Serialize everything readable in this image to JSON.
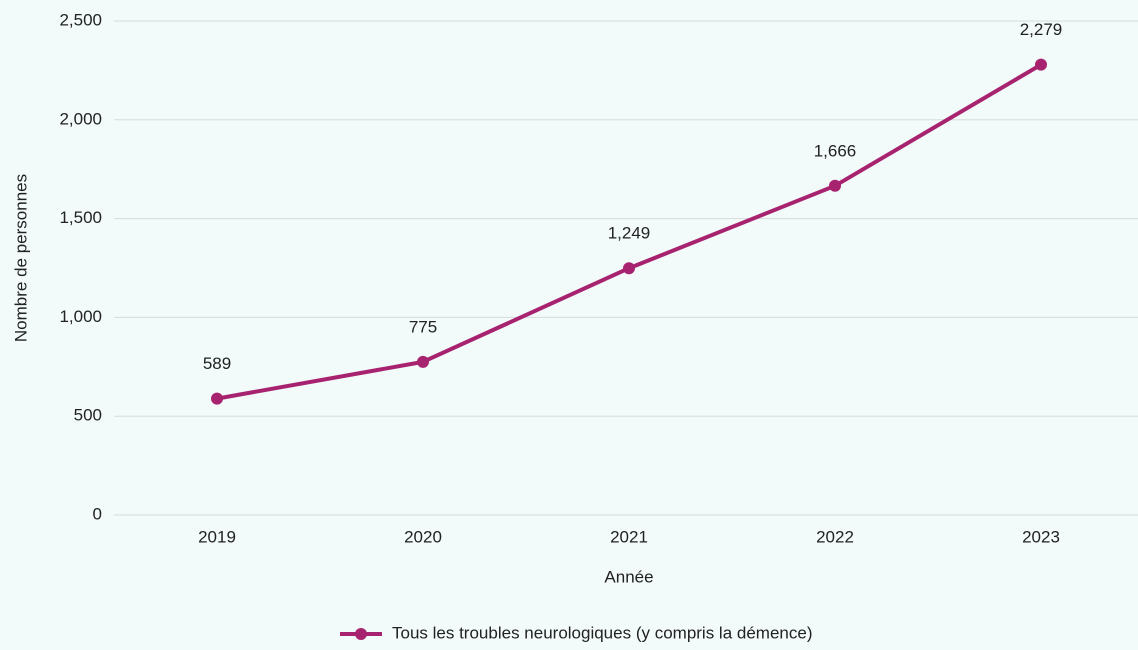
{
  "chart_data": {
    "type": "line",
    "x_label": "Année",
    "y_label": "Nombre de personnes",
    "categories": [
      "2019",
      "2020",
      "2021",
      "2022",
      "2023"
    ],
    "series": [
      {
        "name": "Tous les troubles neurologiques (y compris la démence)",
        "color": "#a8236f",
        "values": [
          589,
          775,
          1249,
          1666,
          2279
        ],
        "value_labels": [
          "589",
          "775",
          "1,249",
          "1,666",
          "2,279"
        ]
      }
    ],
    "ylim": [
      0,
      2500
    ],
    "yticks": [
      0,
      500,
      {
        "value": 1000,
        "label": "1,000"
      },
      {
        "value": 1500,
        "label": "1,500"
      },
      {
        "value": 2000,
        "label": "2,000"
      },
      {
        "value": 2500,
        "label": "2,500"
      }
    ],
    "grid": true,
    "legend": "bottom"
  }
}
